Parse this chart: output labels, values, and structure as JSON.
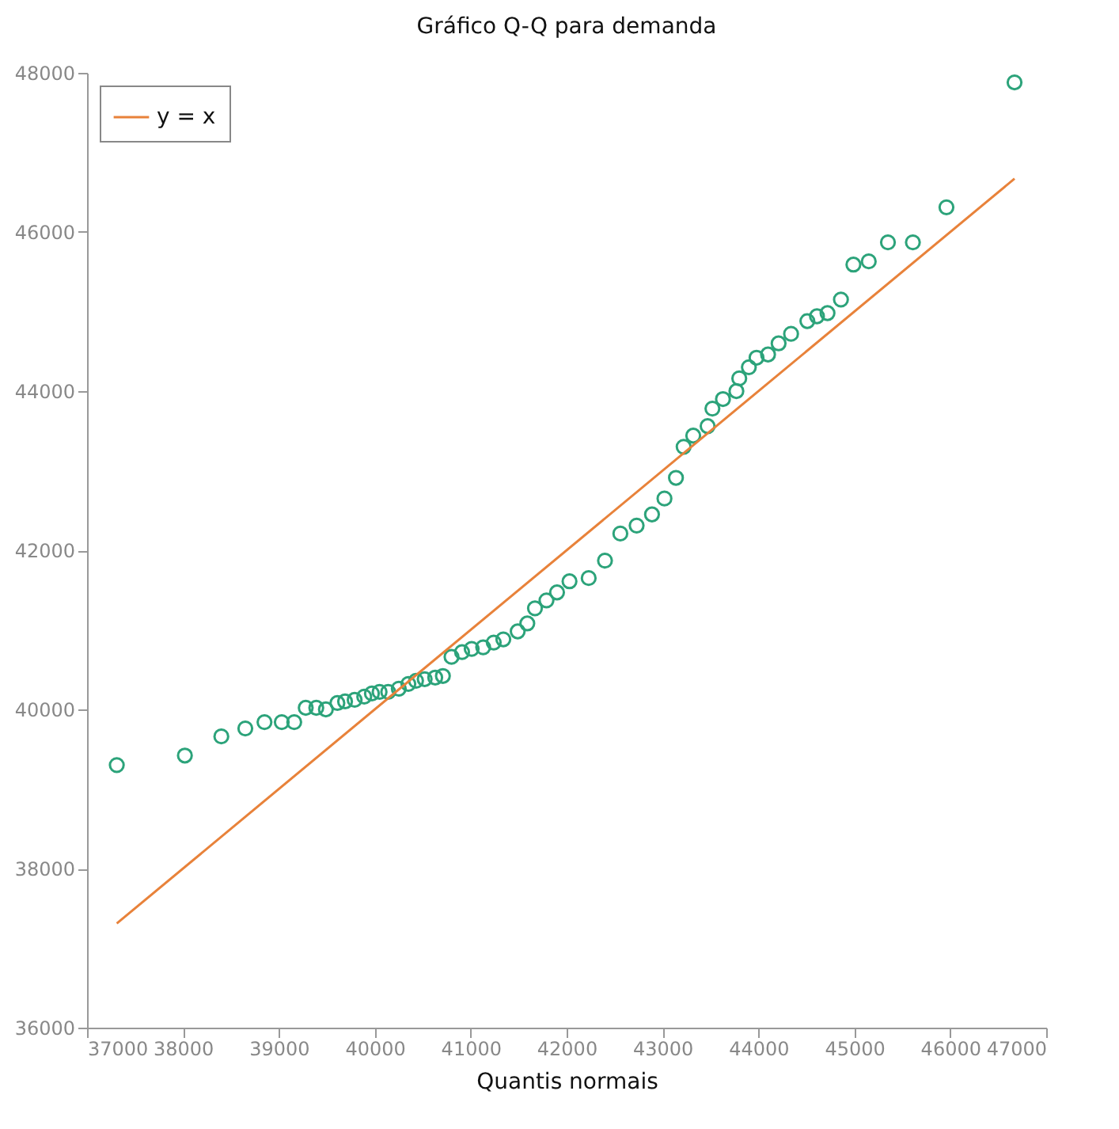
{
  "chart_data": {
    "type": "scatter",
    "title": "Gráfico Q-Q para demanda",
    "xlabel": "Quantis normais",
    "xlim": [
      37000,
      47000
    ],
    "xticks": [
      37000,
      38000,
      39000,
      40000,
      41000,
      42000,
      43000,
      44000,
      45000,
      46000,
      47000
    ],
    "ylim": [
      36000,
      48000
    ],
    "yticks": [
      36000,
      38000,
      40000,
      42000,
      44000,
      46000,
      48000
    ],
    "grid": false,
    "legend": "top left",
    "series": [
      {
        "marker": "circle",
        "color": "#2ca37a",
        "x": [
          37310,
          38020,
          38400,
          38650,
          38850,
          39030,
          39160,
          39280,
          39390,
          39490,
          39610,
          39690,
          39790,
          39890,
          39970,
          40050,
          40140,
          40250,
          40350,
          40430,
          40520,
          40630,
          40710,
          40800,
          40910,
          41010,
          41130,
          41240,
          41340,
          41490,
          41590,
          41670,
          41790,
          41900,
          42030,
          42230,
          42400,
          42560,
          42730,
          42890,
          43020,
          43140,
          43220,
          43320,
          43470,
          43520,
          43630,
          43770,
          43800,
          43900,
          43980,
          44100,
          44210,
          44340,
          44510,
          44610,
          44720,
          44860,
          44990,
          45150,
          45350,
          45610,
          45960,
          46670
        ],
        "values": [
          39300,
          39420,
          39660,
          39760,
          39840,
          39840,
          39840,
          40020,
          40020,
          40000,
          40080,
          40100,
          40120,
          40160,
          40200,
          40220,
          40220,
          40260,
          40320,
          40360,
          40380,
          40400,
          40420,
          40660,
          40720,
          40760,
          40780,
          40840,
          40880,
          40980,
          41080,
          41270,
          41370,
          41470,
          41610,
          41650,
          41870,
          42210,
          42310,
          42450,
          42650,
          42910,
          43300,
          43440,
          43560,
          43780,
          43900,
          44000,
          44160,
          44300,
          44420,
          44460,
          44600,
          44720,
          44880,
          44940,
          44980,
          45150,
          45590,
          45630,
          45870,
          45870,
          46310,
          47880
        ]
      },
      {
        "type": "line",
        "marker": "none",
        "line_style": "solid",
        "name": "y = x",
        "color": "#e8823a",
        "x": [
          37310,
          46670
        ],
        "values": [
          37310,
          46670
        ]
      }
    ]
  }
}
